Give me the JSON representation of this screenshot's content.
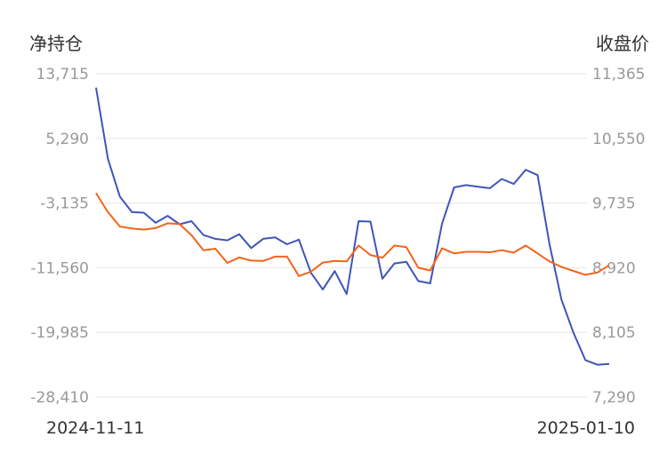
{
  "chart_data": {
    "type": "line",
    "left_axis_title": "净持仓",
    "right_axis_title": "收盘价",
    "left_ticks": [
      "13,715",
      "5,290",
      "-3,135",
      "-11,560",
      "-19,985",
      "-28,410"
    ],
    "right_ticks": [
      "11,365",
      "10,550",
      "9,735",
      "8,920",
      "8,105",
      "7,290"
    ],
    "left_range": [
      -28410,
      13715
    ],
    "right_range": [
      7290,
      11365
    ],
    "x_labels": [
      "2024-11-11",
      "2025-01-10"
    ],
    "grid": true,
    "series": [
      {
        "axis": "left",
        "color": "#4055b8",
        "values": [
          11900,
          2600,
          -2300,
          -4300,
          -4400,
          -5700,
          -4800,
          -5900,
          -5500,
          -7300,
          -7800,
          -8000,
          -7200,
          -9000,
          -7800,
          -7600,
          -8500,
          -7900,
          -12200,
          -14400,
          -12000,
          -15000,
          -5500,
          -5550,
          -13000,
          -11000,
          -10800,
          -13300,
          -13600,
          -5800,
          -1100,
          -800,
          -1000,
          -1200,
          0,
          -650,
          1200,
          500,
          -8500,
          -15700,
          -20000,
          -23600,
          -24200,
          -24100
        ]
      },
      {
        "axis": "right",
        "color": "#f5631a",
        "values": [
          9860,
          9620,
          9440,
          9415,
          9400,
          9420,
          9480,
          9470,
          9330,
          9140,
          9160,
          8980,
          9050,
          9010,
          9005,
          9060,
          9060,
          8815,
          8870,
          8985,
          9005,
          9000,
          9200,
          9080,
          9045,
          9200,
          9180,
          8920,
          8885,
          9165,
          9100,
          9120,
          9120,
          9115,
          9140,
          9110,
          9200,
          9100,
          9000,
          8930,
          8880,
          8830,
          8860,
          8950
        ]
      }
    ]
  }
}
